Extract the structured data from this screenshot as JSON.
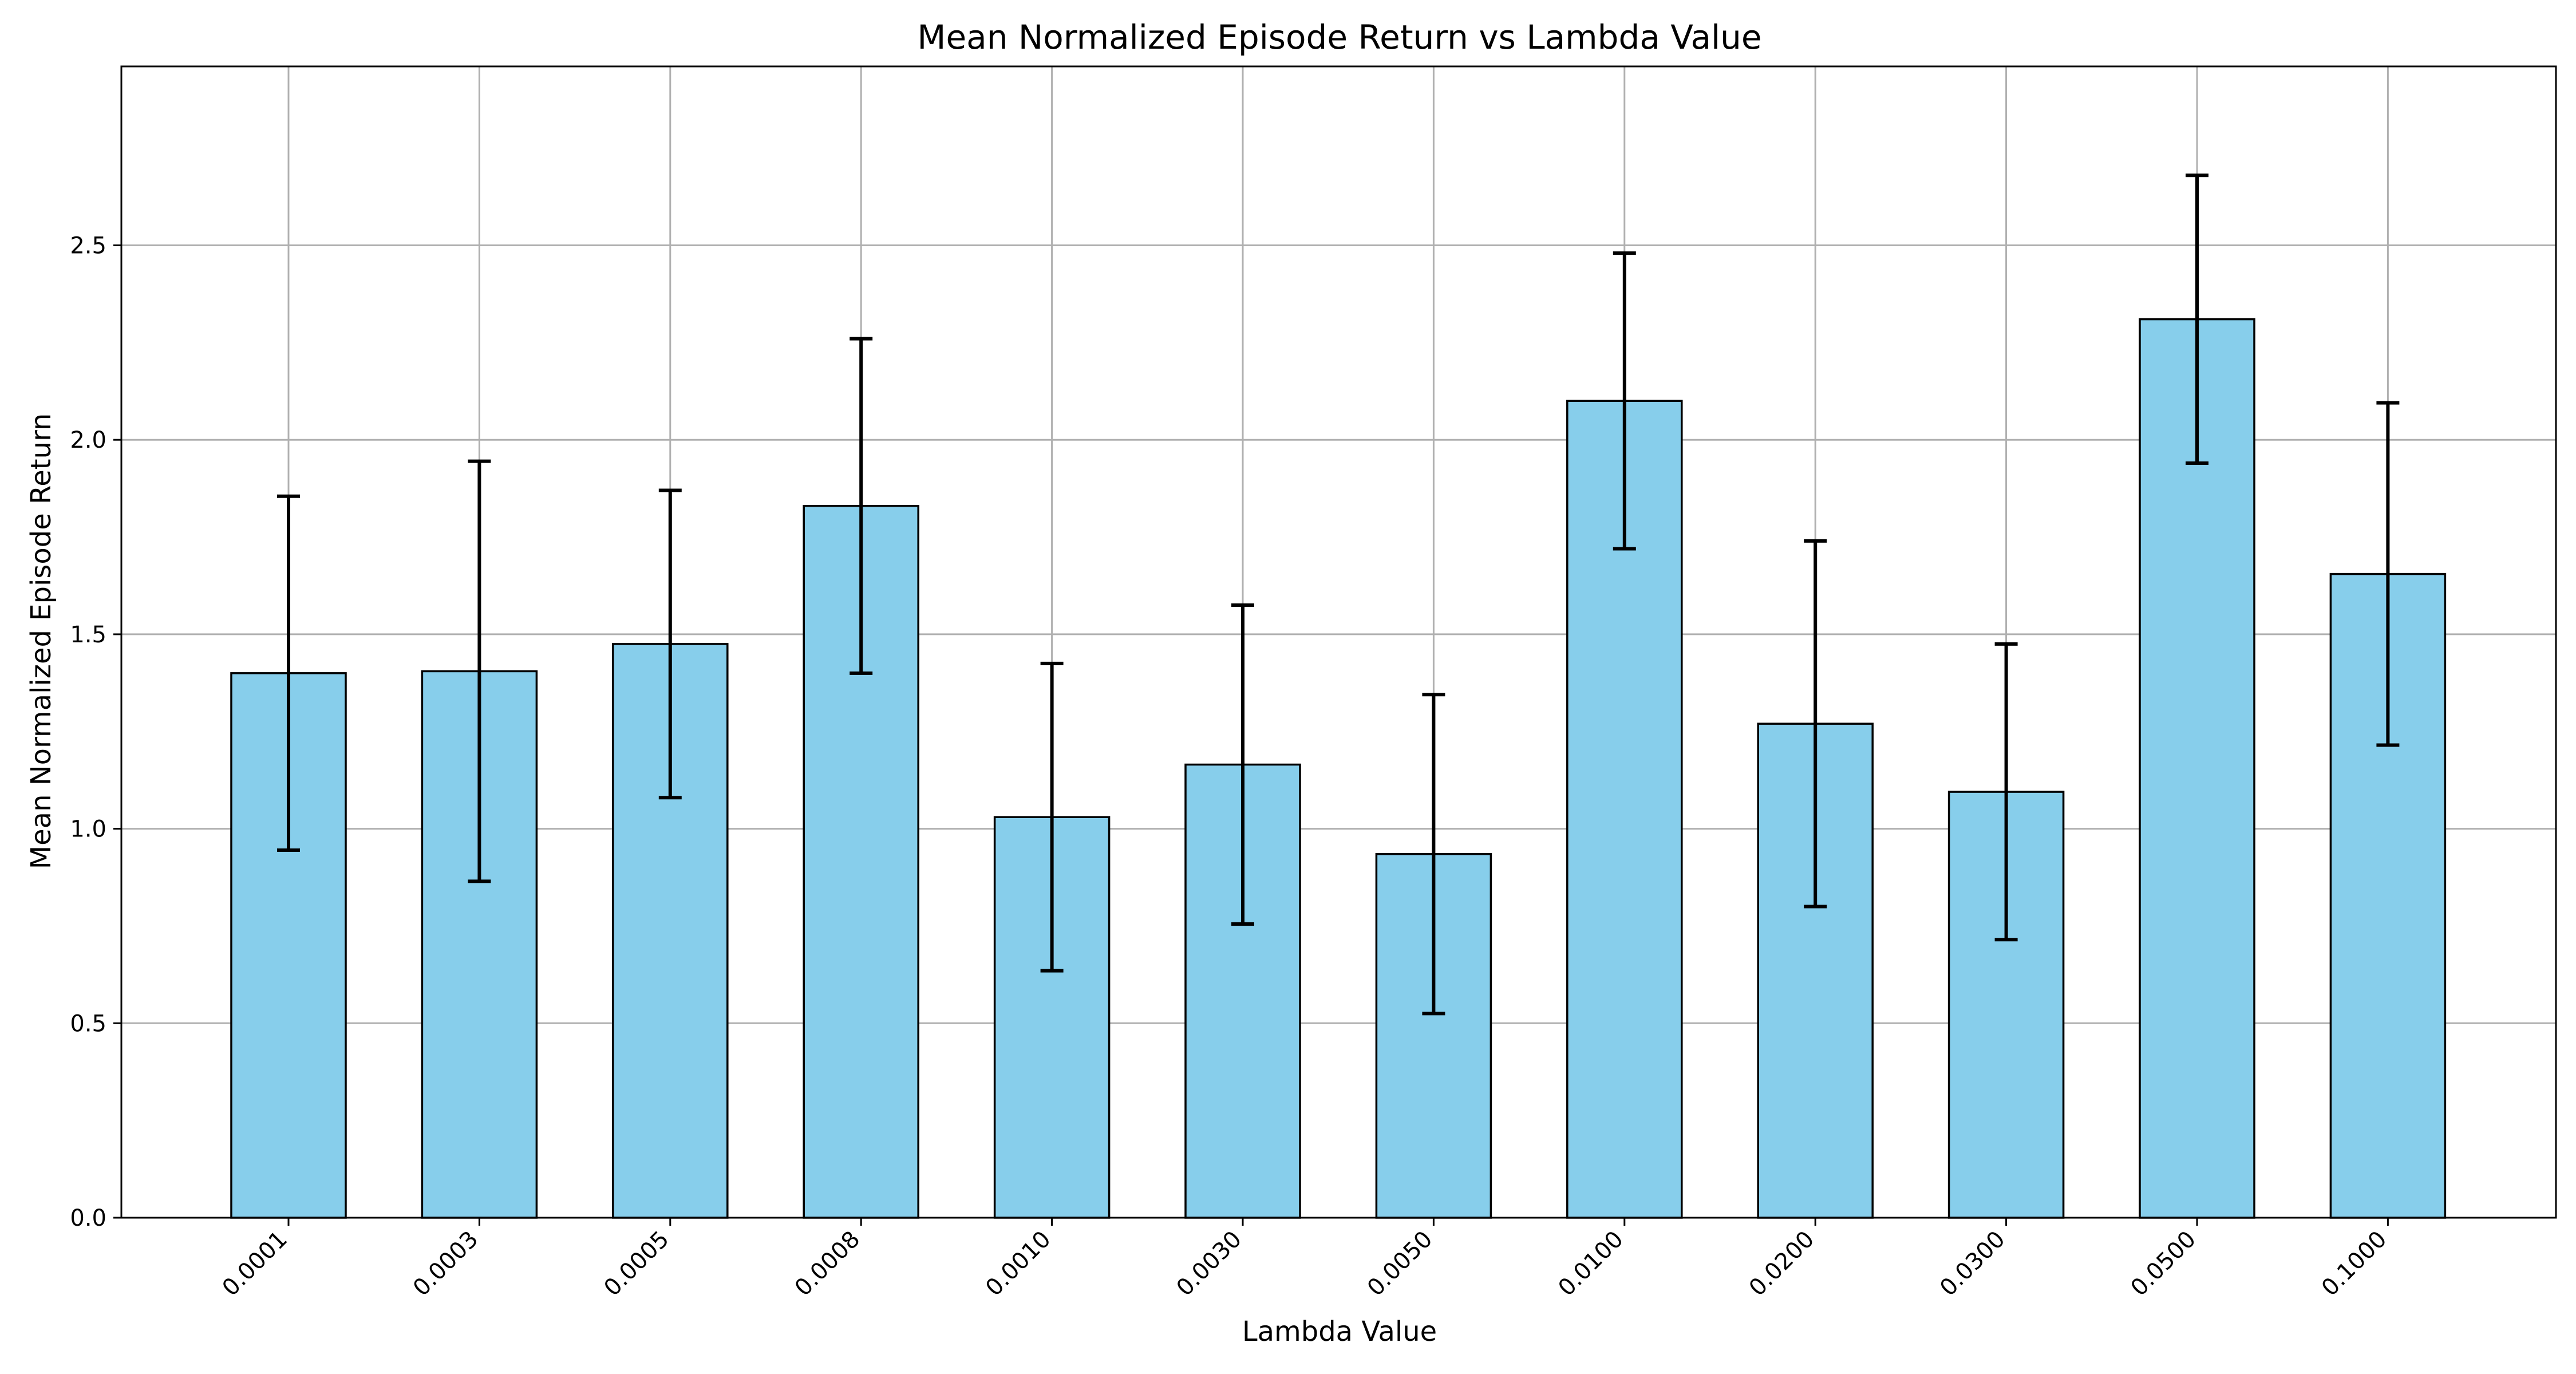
{
  "chart_data": {
    "type": "bar",
    "title": "Mean Normalized Episode Return vs Lambda Value",
    "xlabel": "Lambda Value",
    "ylabel": "Mean Normalized Episode Return",
    "categories": [
      "0.0001",
      "0.0003",
      "0.0005",
      "0.0008",
      "0.0010",
      "0.0030",
      "0.0050",
      "0.0100",
      "0.0200",
      "0.0300",
      "0.0500",
      "0.1000"
    ],
    "values": [
      1.4,
      1.405,
      1.475,
      1.83,
      1.03,
      1.165,
      0.935,
      2.1,
      1.27,
      1.095,
      2.31,
      1.655
    ],
    "error": [
      0.455,
      0.54,
      0.395,
      0.43,
      0.395,
      0.41,
      0.41,
      0.38,
      0.47,
      0.38,
      0.37,
      0.44
    ],
    "ylim": [
      0,
      2.96
    ],
    "yticks": [
      "0.0",
      "0.5",
      "1.0",
      "1.5",
      "2.0",
      "2.5"
    ],
    "grid": true,
    "colors": {
      "bar_fill": "#87ceeb",
      "bar_edge": "#000000",
      "error_bar": "#000000",
      "grid": "#b0b0b0"
    }
  }
}
